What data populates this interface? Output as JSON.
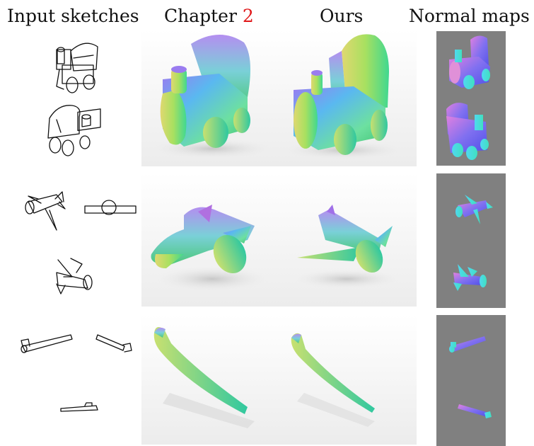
{
  "headers": {
    "col1": "Input sketches",
    "col2_prefix": "Chapter ",
    "col2_ref": "2",
    "col3": "Ours",
    "col4": "Normal maps"
  },
  "rows": [
    {
      "name": "train"
    },
    {
      "name": "airplane"
    },
    {
      "name": "pipe"
    }
  ],
  "colors": {
    "ref_link": "#e0181a",
    "normal_map_bg": "#808080",
    "render_bg": "#f5f5f5"
  }
}
